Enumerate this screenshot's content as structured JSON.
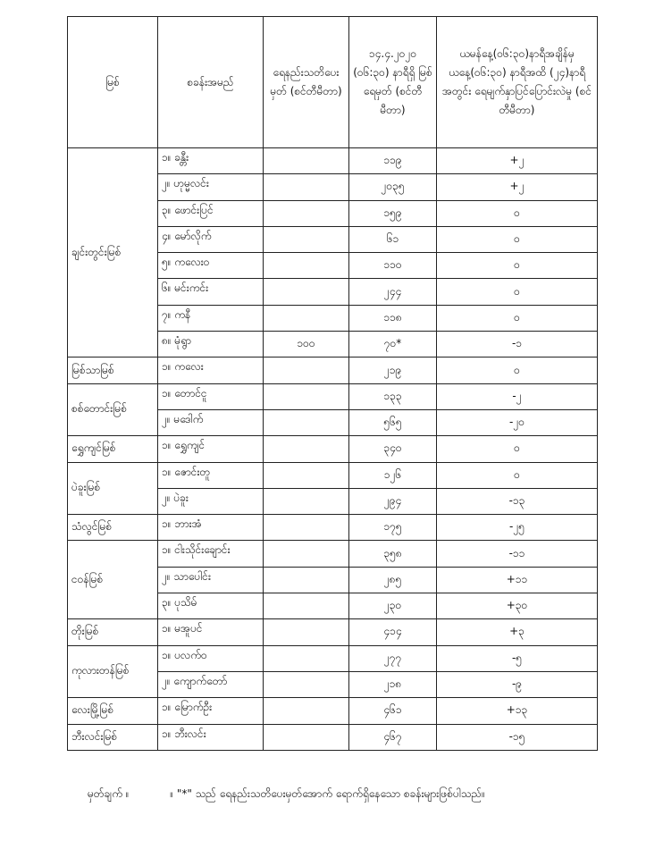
{
  "headers": {
    "river": "မြစ်",
    "station": "စခန်းအမည်",
    "warning": "ရေနည်းသတိပေးမှတ် (စင်တီမီတာ)",
    "level": "၁၄.၄.၂၀၂၀ (၀၆:၃၀) နာရီရှိ မြစ်ရေမှတ် (စင်တီမီတာ)",
    "change": "ယမန်နေ့(၀၆:၃၀)နာရီအချိန်မှ ယနေ့(၀၆:၃၀) နာရီအထိ (၂၄)နာရီအတွင်း ရေမျက်နှာပြင်ပြောင်းလဲမှု (စင်တီမီတာ)"
  },
  "rivers": [
    {
      "name": "ချင်းတွင်းမြစ်",
      "stations": [
        {
          "name": "၁။ ခန္တီး",
          "warning": "",
          "level": "၁၁၉",
          "change": "+၂"
        },
        {
          "name": "၂။ ဟုမ္မလင်း",
          "warning": "",
          "level": "၂၀၃၅",
          "change": "+၂"
        },
        {
          "name": "၃။ ဖောင်းပြင်",
          "warning": "",
          "level": "၁၅၉",
          "change": "၀"
        },
        {
          "name": "၄။ မော်လိုက်",
          "warning": "",
          "level": "၆၁",
          "change": "၀"
        },
        {
          "name": "၅။ ကလေးဝ",
          "warning": "",
          "level": "၁၁၀",
          "change": "၀"
        },
        {
          "name": "၆။ မင်းကင်း",
          "warning": "",
          "level": "၂၄၄",
          "change": "၀"
        },
        {
          "name": "၇။ ကနီ",
          "warning": "",
          "level": "၁၁၈",
          "change": "၀"
        },
        {
          "name": "၈။ မုံရွာ",
          "warning": "၁၀၀",
          "level": "၇၀*",
          "change": "-၁"
        }
      ]
    },
    {
      "name": "မြစ်သာမြစ်",
      "stations": [
        {
          "name": "၁။ ကလေး",
          "warning": "",
          "level": "၂၁၉",
          "change": "၀"
        }
      ]
    },
    {
      "name": "စစ်တောင်းမြစ်",
      "stations": [
        {
          "name": "၁။ တောင်ငူ",
          "warning": "",
          "level": "၁၃၃",
          "change": "-၂"
        },
        {
          "name": "၂။ မဒေါက်",
          "warning": "",
          "level": "၅၆၅",
          "change": "-၂၀"
        }
      ]
    },
    {
      "name": "ရွှေကျင်မြစ်",
      "stations": [
        {
          "name": "၁။ ရွှေကျင်",
          "warning": "",
          "level": "၃၄၀",
          "change": "၀"
        }
      ]
    },
    {
      "name": "ပဲခူးမြစ်",
      "stations": [
        {
          "name": "၁။ ဇောင်းတူ",
          "warning": "",
          "level": "၁၂၆",
          "change": "၀"
        },
        {
          "name": "၂။ ပဲခူး",
          "warning": "",
          "level": "၂၉၄",
          "change": "-၁၃"
        }
      ]
    },
    {
      "name": "သံလွင်မြစ်",
      "stations": [
        {
          "name": "၁။ ဘားအံ",
          "warning": "",
          "level": "၁၇၅",
          "change": "-၂၅"
        }
      ]
    },
    {
      "name": "ငဝန်မြစ်",
      "stations": [
        {
          "name": "၁။ ငါးသိုင်းချောင်း",
          "warning": "",
          "level": "၃၅၈",
          "change": "-၁၁"
        },
        {
          "name": "၂။ သာပေါင်း",
          "warning": "",
          "level": "၂၈၅",
          "change": "+၁၁"
        },
        {
          "name": "၃။ ပုသိမ်",
          "warning": "",
          "level": "၂၃၀",
          "change": "+၃၀"
        }
      ]
    },
    {
      "name": "တိုးမြစ်",
      "stations": [
        {
          "name": "၁။ မအူပင်",
          "warning": "",
          "level": "၄၁၄",
          "change": "+၃"
        }
      ]
    },
    {
      "name": "ကုလားတန်မြစ်",
      "stations": [
        {
          "name": "၁။ ပလက်ဝ",
          "warning": "",
          "level": "၂၇၇",
          "change": "-၅"
        },
        {
          "name": "၂။ ကျောက်တော်",
          "warning": "",
          "level": "၂၁၈",
          "change": "-၉"
        }
      ]
    },
    {
      "name": "လေးမြို့မြစ်",
      "stations": [
        {
          "name": "၁။ မြောက်ဦး",
          "warning": "",
          "level": "၄၆၁",
          "change": "+၁၃"
        }
      ]
    },
    {
      "name": "ဘီးလင်းမြစ်",
      "stations": [
        {
          "name": "၁။ ဘီးလင်း",
          "warning": "",
          "level": "၄၆၇",
          "change": "-၁၅"
        }
      ]
    }
  ],
  "note": {
    "label": "မှတ်ချက် ။",
    "text": "။ \"*\" သည် ရေနည်းသတိပေးမှတ်အောက် ရောက်ရှိနေသော စခန်းများဖြစ်ပါသည်။"
  }
}
